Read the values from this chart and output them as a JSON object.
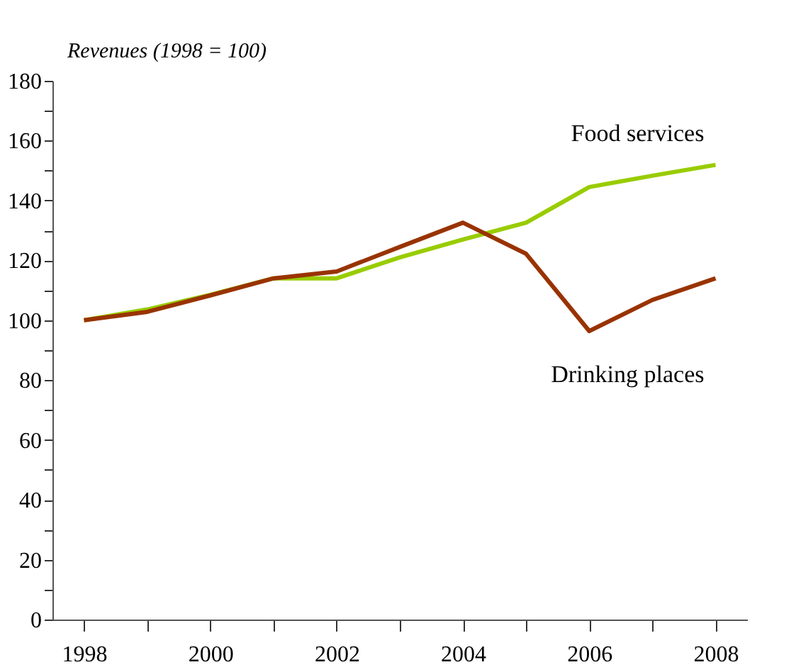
{
  "chart_data": {
    "type": "line",
    "ylabel": "Revenues (1998 = 100)",
    "categories": [
      "1998",
      null,
      "2000",
      null,
      "2002",
      null,
      "2004",
      null,
      "2006",
      null,
      "2008"
    ],
    "series": [
      {
        "name": "Food services",
        "color": "#99cc00",
        "values": [
          100,
          103.6,
          108.5,
          114,
          114,
          121,
          127,
          132.6,
          144.5,
          148.3,
          151.9
        ]
      },
      {
        "name": "Drinking places",
        "color": "#993300",
        "values": [
          100,
          102.8,
          108.3,
          114,
          116.3,
          124.5,
          132.6,
          122.2,
          96.4,
          106.8,
          114
        ]
      }
    ],
    "ylim": [
      0,
      180
    ],
    "yticks": [
      0,
      {
        "value": 10,
        "label": null
      },
      20,
      {
        "value": 30,
        "label": null
      },
      40,
      {
        "value": 50,
        "label": null
      },
      60,
      {
        "value": 70,
        "label": null
      },
      80,
      {
        "value": 90,
        "label": null
      },
      100,
      {
        "value": 110,
        "label": null
      },
      120,
      {
        "value": 130,
        "label": null
      },
      140,
      {
        "value": 150,
        "label": null
      },
      160,
      {
        "value": 170,
        "label": null
      },
      180
    ],
    "grid": false,
    "legend": false,
    "marker": "none",
    "line_style": "solid"
  }
}
